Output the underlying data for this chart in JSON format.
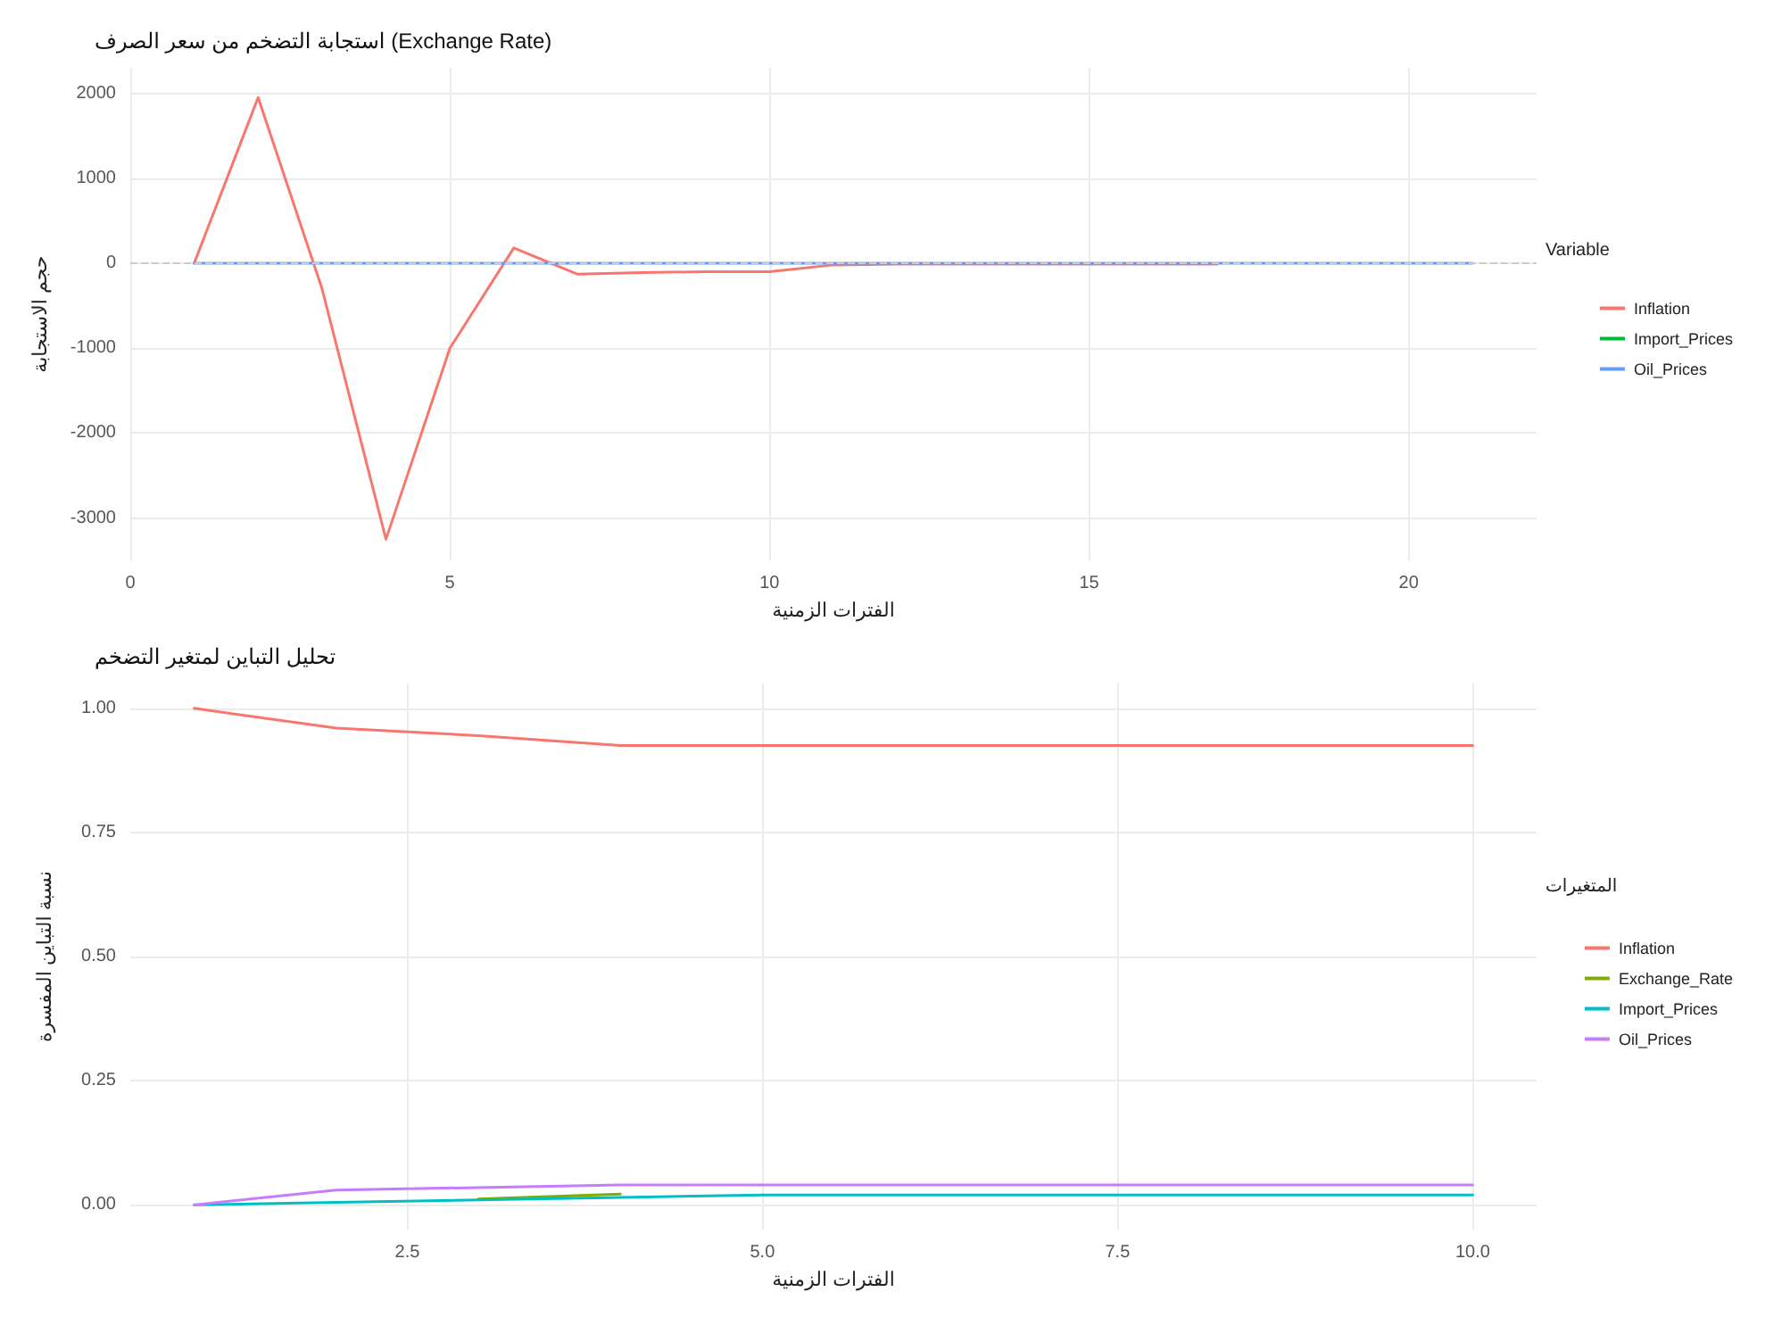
{
  "chart_data": [
    {
      "type": "line",
      "title": "استجابة التضخم من سعر الصرف (Exchange Rate)",
      "xlabel": "الفترات الزمنية",
      "ylabel": "حجم الاستجابة",
      "legend_title": "Variable",
      "xlim": [
        0,
        22
      ],
      "xticks": [
        0,
        5,
        10,
        15,
        20
      ],
      "ylim": [
        -3500,
        2300
      ],
      "yticks": [
        -3000,
        -2000,
        -1000,
        0,
        1000,
        2000
      ],
      "grid": true,
      "legend": "right",
      "ref_lines": [
        {
          "axis": "y",
          "value": 0,
          "color": "#cccccc",
          "line_style": "dashed"
        }
      ],
      "series": [
        {
          "name": "Inflation",
          "color": "#f8766d",
          "x": [
            1,
            2,
            3,
            4,
            5,
            6,
            7,
            8,
            9,
            10,
            11,
            12,
            13,
            14,
            15,
            16,
            17
          ],
          "values": [
            0,
            1950,
            -300,
            -3250,
            -1000,
            180,
            -130,
            -110,
            -100,
            -100,
            -20,
            -10,
            -10,
            -10,
            -10,
            -10,
            -10
          ]
        },
        {
          "name": "Import_Prices",
          "color": "#00ba38"
        },
        {
          "name": "Oil_Prices",
          "color": "#619cff",
          "x": [
            1,
            21
          ],
          "values": [
            0,
            0
          ]
        }
      ]
    },
    {
      "type": "line",
      "title": "تحليل التباين لمتغير التضخم",
      "xlabel": "الفترات الزمنية",
      "ylabel": "نسبة التباين المفسرة",
      "legend_title": "المتغيرات",
      "xlim": [
        0.55,
        10.45
      ],
      "xticks": [
        2.5,
        {
          "value": 5,
          "label": "5.0"
        },
        7.5,
        {
          "value": 10,
          "label": "10.0"
        }
      ],
      "ylim": [
        -0.05,
        1.05
      ],
      "yticks": [
        {
          "value": 0,
          "label": "0.00"
        },
        0.25,
        {
          "value": 0.5,
          "label": "0.50"
        },
        0.75,
        {
          "value": 1,
          "label": "1.00"
        }
      ],
      "grid": true,
      "legend": "right",
      "x": [
        1,
        2,
        3,
        4,
        5,
        6,
        7,
        8,
        9,
        10
      ],
      "series": [
        {
          "name": "Inflation",
          "color": "#f8766d",
          "values": [
            1,
            0.96,
            0.945,
            0.925,
            0.925,
            0.925,
            0.925,
            0.925,
            0.925,
            0.925
          ]
        },
        {
          "name": "Exchange_Rate",
          "color": "#7cae00",
          "values": [
            null,
            null,
            0.012,
            0.022,
            null,
            null,
            null,
            null,
            null,
            null
          ]
        },
        {
          "name": "Import_Prices",
          "color": "#00bfc4",
          "values": [
            0,
            0.005,
            0.01,
            0.015,
            0.02,
            0.02,
            0.02,
            0.02,
            0.02,
            0.02
          ]
        },
        {
          "name": "Oil_Prices",
          "color": "#c77cff",
          "values": [
            0,
            0.03,
            0.035,
            0.04,
            0.04,
            0.04,
            0.04,
            0.04,
            0.04,
            0.04
          ]
        }
      ]
    }
  ]
}
